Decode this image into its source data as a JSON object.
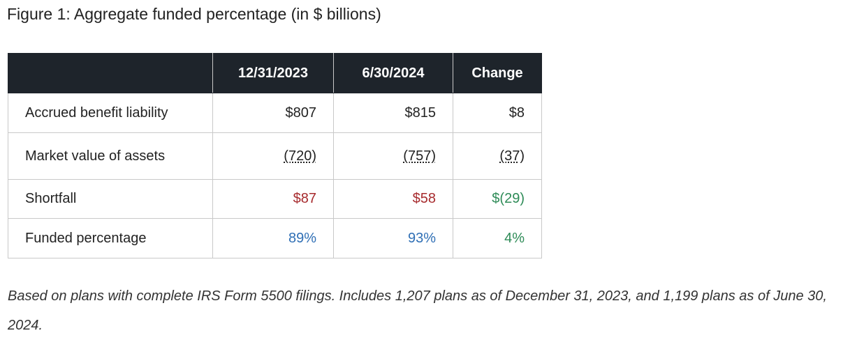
{
  "figure": {
    "title": "Figure 1: Aggregate funded percentage (in $ billions)"
  },
  "table": {
    "headers": [
      "",
      "12/31/2023",
      "6/30/2024",
      "Change"
    ],
    "rows": [
      {
        "label": "Accrued benefit liability",
        "values": [
          "$807",
          "$815",
          "$8"
        ]
      },
      {
        "label": "Market value of assets",
        "values": [
          "(720)",
          "(757)",
          "(37)"
        ]
      },
      {
        "label": "Shortfall",
        "values": [
          "$87",
          "$58",
          "$(29)"
        ]
      },
      {
        "label": "Funded percentage",
        "values": [
          "89%",
          "93%",
          "4%"
        ]
      }
    ]
  },
  "colors": {
    "header_bg": "#1e242b",
    "shortfall_red": "#a72b2e",
    "change_green": "#2e8b57",
    "percent_blue": "#2f6fb5"
  },
  "footnote": "Based on plans with complete IRS Form 5500 filings. Includes 1,207 plans as of December 31, 2023, and 1,199 plans as of June 30, 2024."
}
